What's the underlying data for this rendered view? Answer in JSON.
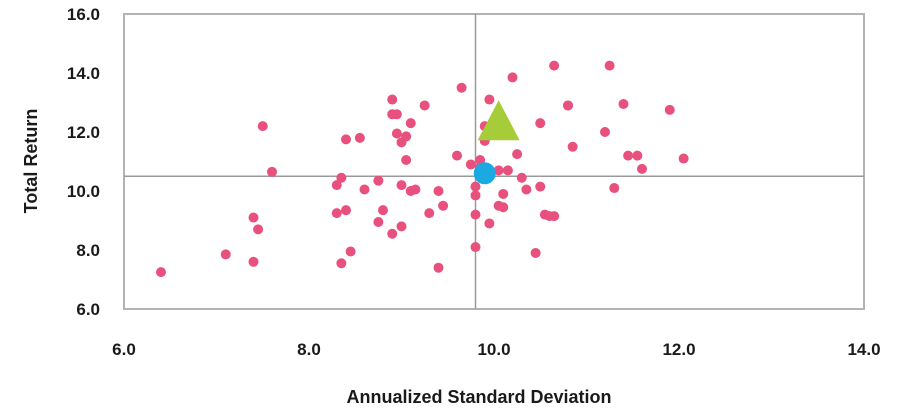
{
  "chart_data": {
    "type": "scatter",
    "title": "",
    "xlabel": "Annualized Standard Deviation",
    "ylabel": "Total Return",
    "xlim": [
      6.0,
      14.0
    ],
    "ylim": [
      6.0,
      16.0
    ],
    "x_ticks": [
      "6.0",
      "8.0",
      "10.0",
      "12.0",
      "14.0"
    ],
    "y_ticks": [
      "6.0",
      "8.0",
      "10.0",
      "12.0",
      "14.0",
      "16.0"
    ],
    "grid": false,
    "reference_lines": {
      "x": 9.8,
      "y": 10.5
    },
    "colors": {
      "points": "#e8507e",
      "circle_marker": "#1aa9e0",
      "triangle_marker": "#a6cc3a",
      "axes": "#b3b3b3",
      "reference_lines": "#999999"
    },
    "series": [
      {
        "marker": "circle",
        "points": [
          [
            6.4,
            7.25
          ],
          [
            7.1,
            7.85
          ],
          [
            7.4,
            7.6
          ],
          [
            7.4,
            9.1
          ],
          [
            7.45,
            8.7
          ],
          [
            7.5,
            12.2
          ],
          [
            7.6,
            10.65
          ],
          [
            8.3,
            9.25
          ],
          [
            8.3,
            10.2
          ],
          [
            8.35,
            10.45
          ],
          [
            8.35,
            7.55
          ],
          [
            8.4,
            11.75
          ],
          [
            8.4,
            9.35
          ],
          [
            8.45,
            7.95
          ],
          [
            8.55,
            11.8
          ],
          [
            8.6,
            10.05
          ],
          [
            8.75,
            10.35
          ],
          [
            8.75,
            8.95
          ],
          [
            8.8,
            9.35
          ],
          [
            8.9,
            12.6
          ],
          [
            8.9,
            8.55
          ],
          [
            8.9,
            13.1
          ],
          [
            8.95,
            12.6
          ],
          [
            8.95,
            11.95
          ],
          [
            9.0,
            11.65
          ],
          [
            9.0,
            10.2
          ],
          [
            9.0,
            8.8
          ],
          [
            9.05,
            11.05
          ],
          [
            9.05,
            11.85
          ],
          [
            9.1,
            10.0
          ],
          [
            9.1,
            12.3
          ],
          [
            9.15,
            10.05
          ],
          [
            9.25,
            12.9
          ],
          [
            9.3,
            9.25
          ],
          [
            9.4,
            7.4
          ],
          [
            9.4,
            10.0
          ],
          [
            9.45,
            9.5
          ],
          [
            9.6,
            11.2
          ],
          [
            9.65,
            13.5
          ],
          [
            9.75,
            10.9
          ],
          [
            9.8,
            8.1
          ],
          [
            9.8,
            9.2
          ],
          [
            9.8,
            9.85
          ],
          [
            9.8,
            10.15
          ],
          [
            9.85,
            10.8
          ],
          [
            9.85,
            11.05
          ],
          [
            9.9,
            12.2
          ],
          [
            9.9,
            11.7
          ],
          [
            9.95,
            8.9
          ],
          [
            9.95,
            13.1
          ],
          [
            10.05,
            9.5
          ],
          [
            10.05,
            10.7
          ],
          [
            10.1,
            9.45
          ],
          [
            10.1,
            9.9
          ],
          [
            10.15,
            10.7
          ],
          [
            10.2,
            13.85
          ],
          [
            10.25,
            11.25
          ],
          [
            10.3,
            10.45
          ],
          [
            10.35,
            10.05
          ],
          [
            10.45,
            7.9
          ],
          [
            10.5,
            12.3
          ],
          [
            10.5,
            10.15
          ],
          [
            10.55,
            9.2
          ],
          [
            10.6,
            9.15
          ],
          [
            10.65,
            9.15
          ],
          [
            10.65,
            14.25
          ],
          [
            10.8,
            12.9
          ],
          [
            10.8,
            12.9
          ],
          [
            10.85,
            11.5
          ],
          [
            11.2,
            12.0
          ],
          [
            11.25,
            14.25
          ],
          [
            11.3,
            10.1
          ],
          [
            11.4,
            12.95
          ],
          [
            11.45,
            11.2
          ],
          [
            11.55,
            11.2
          ],
          [
            11.6,
            10.75
          ],
          [
            11.9,
            12.75
          ],
          [
            12.05,
            11.1
          ]
        ]
      },
      {
        "marker": "big-circle",
        "points": [
          [
            9.9,
            10.6
          ]
        ]
      },
      {
        "marker": "triangle",
        "points": [
          [
            10.05,
            12.4
          ]
        ]
      }
    ]
  }
}
